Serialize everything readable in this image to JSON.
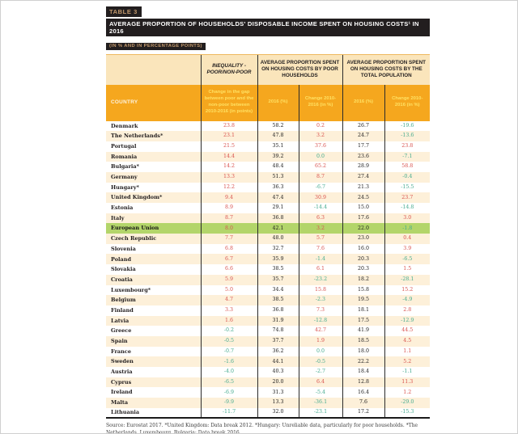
{
  "header": {
    "table_label": "TABLE 3",
    "title": "AVERAGE PROPORTION OF HOUSEHOLDS' DISPOSABLE INCOME SPENT ON HOUSING COSTS¹ IN 2016",
    "subtitle": "(IN % AND IN PERCENTAGE POINTS)"
  },
  "table": {
    "group_headers": [
      "INEQUALITY - POOR/NON-POOR",
      "AVERAGE PROPORTION SPENT ON HOUSING COSTS BY POOR HOUSEHOLDS",
      "AVERAGE PROPORTION SPENT ON HOUSING COSTS BY THE TOTAL POPULATION"
    ],
    "column_headers": [
      "COUNTRY",
      "Change in the gap between poor and the non-poor between 2010-2016 (in points)",
      "2016 (%)",
      "Change 2010-2016 (in %)",
      "2016 (%)",
      "Change 2010-2016 (in %)"
    ],
    "rows": [
      {
        "country": "Denmark",
        "values": [
          "23.8",
          "58.2",
          "0.2",
          "26.7",
          "-19.6"
        ],
        "highlight": false
      },
      {
        "country": "The Netherlands*",
        "values": [
          "23.1",
          "47.8",
          "3.2",
          "24.7",
          "-13.6"
        ],
        "highlight": false
      },
      {
        "country": "Portugal",
        "values": [
          "21.5",
          "35.1",
          "37.6",
          "17.7",
          "23.8"
        ],
        "highlight": false
      },
      {
        "country": "Romania",
        "values": [
          "14.4",
          "39.2",
          "0.0",
          "23.6",
          "-7.1"
        ],
        "highlight": false
      },
      {
        "country": "Bulgaria*",
        "values": [
          "14.2",
          "48.4",
          "65.2",
          "28.9",
          "58.8"
        ],
        "highlight": false
      },
      {
        "country": "Germany",
        "values": [
          "13.3",
          "51.3",
          "8.7",
          "27.4",
          "-0.4"
        ],
        "highlight": false
      },
      {
        "country": "Hungary*",
        "values": [
          "12.2",
          "36.3",
          "-6.7",
          "21.3",
          "-15.5"
        ],
        "highlight": false
      },
      {
        "country": "United Kingdom*",
        "values": [
          "9.4",
          "47.4",
          "30.9",
          "24.5",
          "23.7"
        ],
        "highlight": false
      },
      {
        "country": "Estonia",
        "values": [
          "8.9",
          "29.1",
          "-14.4",
          "15.0",
          "-14.8"
        ],
        "highlight": false
      },
      {
        "country": "Italy",
        "values": [
          "8.7",
          "36.8",
          "6.3",
          "17.6",
          "3.0"
        ],
        "highlight": false
      },
      {
        "country": "European Union",
        "values": [
          "8.0",
          "42.1",
          "3.2",
          "22.0",
          "-1.8"
        ],
        "highlight": true
      },
      {
        "country": "Czech Republic",
        "values": [
          "7.7",
          "48.0",
          "5.7",
          "23.0",
          "0.4"
        ],
        "highlight": false
      },
      {
        "country": "Slovenia",
        "values": [
          "6.8",
          "32.7",
          "7.6",
          "16.0",
          "3.9"
        ],
        "highlight": false
      },
      {
        "country": "Poland",
        "values": [
          "6.7",
          "35.9",
          "-1.4",
          "20.3",
          "-6.5"
        ],
        "highlight": false
      },
      {
        "country": "Slovakia",
        "values": [
          "6.6",
          "38.5",
          "6.1",
          "20.3",
          "1.5"
        ],
        "highlight": false
      },
      {
        "country": "Croatia",
        "values": [
          "5.9",
          "35.7",
          "-23.2",
          "18.2",
          "-28.1"
        ],
        "highlight": false
      },
      {
        "country": "Luxembourg*",
        "values": [
          "5.0",
          "34.4",
          "15.8",
          "15.8",
          "15.2"
        ],
        "highlight": false
      },
      {
        "country": "Belgium",
        "values": [
          "4.7",
          "38.5",
          "-2.3",
          "19.5",
          "-4.9"
        ],
        "highlight": false
      },
      {
        "country": "Finland",
        "values": [
          "3.3",
          "36.8",
          "7.3",
          "18.1",
          "2.8"
        ],
        "highlight": false
      },
      {
        "country": "Latvia",
        "values": [
          "1.6",
          "31.9",
          "-12.8",
          "17.5",
          "-12.9"
        ],
        "highlight": false
      },
      {
        "country": "Greece",
        "values": [
          "-0.2",
          "74.8",
          "42.7",
          "41.9",
          "44.5"
        ],
        "highlight": false
      },
      {
        "country": "Spain",
        "values": [
          "-0.5",
          "37.7",
          "1.9",
          "18.5",
          "4.5"
        ],
        "highlight": false
      },
      {
        "country": "France",
        "values": [
          "-0.7",
          "36.2",
          "0.0",
          "18.0",
          "1.1"
        ],
        "highlight": false
      },
      {
        "country": "Sweden",
        "values": [
          "-1.6",
          "44.1",
          "-0.5",
          "22.2",
          "5.2"
        ],
        "highlight": false
      },
      {
        "country": "Austria",
        "values": [
          "-4.0",
          "40.3",
          "-2.7",
          "18.4",
          "-1.1"
        ],
        "highlight": false
      },
      {
        "country": "Cyprus",
        "values": [
          "-6.5",
          "20.0",
          "6.4",
          "12.8",
          "11.3"
        ],
        "highlight": false
      },
      {
        "country": "Ireland",
        "values": [
          "-6.9",
          "31.3",
          "-5.4",
          "16.4",
          "1.2"
        ],
        "highlight": false
      },
      {
        "country": "Malta",
        "values": [
          "-9.9",
          "13.3",
          "-36.1",
          "7.6",
          "-29.0"
        ],
        "highlight": false
      },
      {
        "country": "Lithuania",
        "values": [
          "-11.7",
          "32.0",
          "-23.1",
          "17.2",
          "-15.3"
        ],
        "highlight": false
      }
    ]
  },
  "footer": {
    "source": "Source: Eurostat 2017. *United Kingdom: Data break 2012. *Hungary: Unreliable data, particularly for poor households. *The Netherlands, Luxembourg, Bulgaria: Data break 2016"
  },
  "colors": {
    "bar_black": "#221e1f",
    "tan": "#c49a6d",
    "header_cream": "#fae5bb",
    "accent_orange": "#f5a71e",
    "row_cream": "#fdf0d9",
    "eu_green": "#b3d56a",
    "positive_red": "#d9534f",
    "negative_green": "#45ab8f"
  }
}
